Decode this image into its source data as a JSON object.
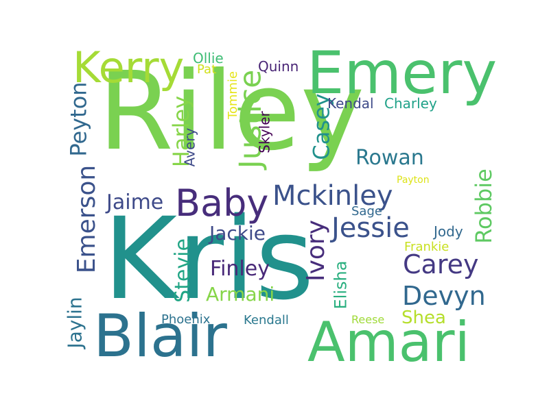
{
  "cloud": {
    "riley": {
      "text": "Riley",
      "color": "#7ad151"
    },
    "kris": {
      "text": "Kris",
      "color": "#21918c"
    },
    "emery": {
      "text": "Emery",
      "color": "#4ac16d"
    },
    "kerry": {
      "text": "Kerry",
      "color": "#a5db36"
    },
    "blair": {
      "text": "Blair",
      "color": "#2c728e"
    },
    "amari": {
      "text": "Amari",
      "color": "#4ac16d"
    },
    "baby": {
      "text": "Baby",
      "color": "#472d7b"
    },
    "mckinley": {
      "text": "Mckinley",
      "color": "#3b528b"
    },
    "justice": {
      "text": "Justice",
      "color": "#7ad151"
    },
    "peyton": {
      "text": "Peyton",
      "color": "#31688e"
    },
    "emerson": {
      "text": "Emerson",
      "color": "#3b528b"
    },
    "harley": {
      "text": "Harley",
      "color": "#86d549"
    },
    "casey": {
      "text": "Casey",
      "color": "#21918c"
    },
    "rowan": {
      "text": "Rowan",
      "color": "#2a788e"
    },
    "robbie": {
      "text": "Robbie",
      "color": "#5ec962"
    },
    "jessie": {
      "text": "Jessie",
      "color": "#3b528b"
    },
    "ivory": {
      "text": "Ivory",
      "color": "#472d7b"
    },
    "carey": {
      "text": "Carey",
      "color": "#443983"
    },
    "devyn": {
      "text": "Devyn",
      "color": "#31688e"
    },
    "jaime": {
      "text": "Jaime",
      "color": "#3e4a89"
    },
    "jackie": {
      "text": "Jackie",
      "color": "#3e4a89"
    },
    "finley": {
      "text": "Finley",
      "color": "#482878"
    },
    "armani": {
      "text": "Armani",
      "color": "#86d549"
    },
    "stevie": {
      "text": "Stevie",
      "color": "#21a585"
    },
    "jaylin": {
      "text": "Jaylin",
      "color": "#2c728e"
    },
    "elisha": {
      "text": "Elisha",
      "color": "#29af7f"
    },
    "shea": {
      "text": "Shea",
      "color": "#b5de2b"
    },
    "kendal": {
      "text": "Kendal",
      "color": "#3e4a89"
    },
    "charley": {
      "text": "Charley",
      "color": "#1fa188"
    },
    "ollie": {
      "text": "Ollie",
      "color": "#3dbc74"
    },
    "pat": {
      "text": "Pat",
      "color": "#d0e11c"
    },
    "quinn": {
      "text": "Quinn",
      "color": "#482475"
    },
    "tommie": {
      "text": "Tommie",
      "color": "#e5e419"
    },
    "avery": {
      "text": "Avery",
      "color": "#3e4a89"
    },
    "skyler": {
      "text": "Skyler",
      "color": "#440154"
    },
    "payton": {
      "text": "Payton",
      "color": "#dde318"
    },
    "sage": {
      "text": "Sage",
      "color": "#31688e"
    },
    "jody": {
      "text": "Jody",
      "color": "#31688e"
    },
    "frankie": {
      "text": "Frankie",
      "color": "#c8e020"
    },
    "phoenix": {
      "text": "Phoenix",
      "color": "#2c728e"
    },
    "kendall": {
      "text": "Kendall",
      "color": "#2a788e"
    },
    "reese": {
      "text": "Reese",
      "color": "#a0da39"
    }
  }
}
